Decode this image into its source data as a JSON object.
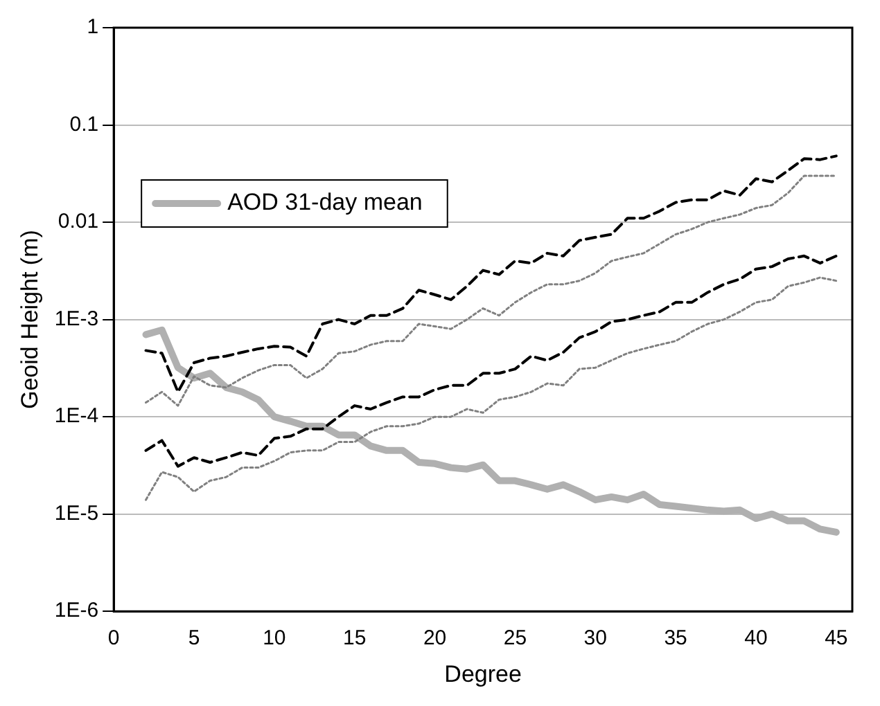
{
  "chart_data": {
    "type": "line",
    "xlabel": "Degree",
    "ylabel": "Geoid Height (m)",
    "log": "y",
    "grid": "y",
    "legend": "top left",
    "marker": "none",
    "x": [
      2,
      3,
      4,
      5,
      6,
      7,
      8,
      9,
      10,
      11,
      12,
      13,
      14,
      15,
      16,
      17,
      18,
      19,
      20,
      21,
      22,
      23,
      24,
      25,
      26,
      27,
      28,
      29,
      30,
      31,
      32,
      33,
      34,
      35,
      36,
      37,
      38,
      39,
      40,
      41,
      42,
      43,
      44,
      45
    ],
    "xlim": [
      0,
      46
    ],
    "xticks": [
      0,
      5,
      10,
      15,
      20,
      25,
      30,
      35,
      40,
      45
    ],
    "ylim": [
      1e-06,
      1
    ],
    "yticks": [
      {
        "value": 1e-06,
        "label": "1E-6"
      },
      {
        "value": 1e-05,
        "label": "1E-5"
      },
      {
        "value": 0.0001,
        "label": "1E-4"
      },
      {
        "value": 0.001,
        "label": "1E-3"
      },
      0.01,
      0.1,
      1
    ],
    "series": [
      {
        "color": "#000000",
        "line_style": "dashed",
        "values": [
          0.00048,
          0.00045,
          0.00018,
          0.00036,
          0.0004,
          0.00042,
          0.00046,
          0.0005,
          0.00053,
          0.00052,
          0.00042,
          0.0009,
          0.001,
          0.0009,
          0.0011,
          0.0011,
          0.0013,
          0.002,
          0.0018,
          0.0016,
          0.0022,
          0.0032,
          0.0029,
          0.004,
          0.0038,
          0.0048,
          0.0045,
          0.0065,
          0.007,
          0.0075,
          0.011,
          0.011,
          0.013,
          0.016,
          0.017,
          0.017,
          0.021,
          0.019,
          0.028,
          0.026,
          0.034,
          0.045,
          0.044,
          0.048
        ]
      },
      {
        "color": "#000000",
        "line_style": "dashed",
        "values": [
          4.5e-05,
          5.7e-05,
          3.1e-05,
          3.8e-05,
          3.4e-05,
          3.8e-05,
          4.3e-05,
          4e-05,
          6e-05,
          6.3e-05,
          7.5e-05,
          7.5e-05,
          0.0001,
          0.00013,
          0.00012,
          0.00014,
          0.00016,
          0.00016,
          0.00019,
          0.00021,
          0.00021,
          0.00028,
          0.00028,
          0.00031,
          0.00042,
          0.00038,
          0.00046,
          0.00065,
          0.00075,
          0.00095,
          0.001,
          0.0011,
          0.0012,
          0.0015,
          0.0015,
          0.0019,
          0.0023,
          0.0026,
          0.0033,
          0.0035,
          0.0042,
          0.0045,
          0.0038,
          0.0045
        ]
      },
      {
        "color": "#808080",
        "line_style": "dotted",
        "values": [
          0.00014,
          0.00018,
          0.00013,
          0.00026,
          0.00021,
          0.0002,
          0.00025,
          0.0003,
          0.00034,
          0.00034,
          0.00025,
          0.00031,
          0.00045,
          0.00047,
          0.00055,
          0.0006,
          0.0006,
          0.0009,
          0.00085,
          0.0008,
          0.001,
          0.0013,
          0.0011,
          0.0015,
          0.0019,
          0.0023,
          0.0023,
          0.0025,
          0.003,
          0.004,
          0.0044,
          0.0048,
          0.006,
          0.0075,
          0.0085,
          0.01,
          0.011,
          0.012,
          0.014,
          0.015,
          0.02,
          0.03,
          0.03,
          0.03
        ]
      },
      {
        "color": "#808080",
        "line_style": "dotted",
        "values": [
          1.4e-05,
          2.7e-05,
          2.4e-05,
          1.7e-05,
          2.2e-05,
          2.4e-05,
          3e-05,
          3e-05,
          3.5e-05,
          4.3e-05,
          4.5e-05,
          4.5e-05,
          5.5e-05,
          5.5e-05,
          7e-05,
          8e-05,
          8e-05,
          8.5e-05,
          0.0001,
          0.0001,
          0.00012,
          0.00011,
          0.00015,
          0.00016,
          0.00018,
          0.00022,
          0.00021,
          0.00031,
          0.00032,
          0.00038,
          0.00045,
          0.0005,
          0.00055,
          0.0006,
          0.00075,
          0.0009,
          0.001,
          0.0012,
          0.0015,
          0.0016,
          0.0022,
          0.0024,
          0.0027,
          0.0025
        ]
      },
      {
        "name": "AOD 31-day mean",
        "color": "#b0b0b0",
        "line_style": "solid",
        "values": [
          0.0007,
          0.00078,
          0.00032,
          0.00025,
          0.00028,
          0.0002,
          0.00018,
          0.00015,
          0.0001,
          9e-05,
          8e-05,
          8e-05,
          6.5e-05,
          6.5e-05,
          5e-05,
          4.5e-05,
          4.5e-05,
          3.4e-05,
          3.3e-05,
          3e-05,
          2.9e-05,
          3.2e-05,
          2.2e-05,
          2.2e-05,
          2e-05,
          1.8e-05,
          2e-05,
          1.7e-05,
          1.4e-05,
          1.5e-05,
          1.4e-05,
          1.6e-05,
          1.25e-05,
          1.2e-05,
          1.15e-05,
          1.1e-05,
          1.07e-05,
          1.1e-05,
          9e-06,
          1e-05,
          8.5e-06,
          8.5e-06,
          7e-06,
          6.5e-06
        ]
      }
    ]
  }
}
